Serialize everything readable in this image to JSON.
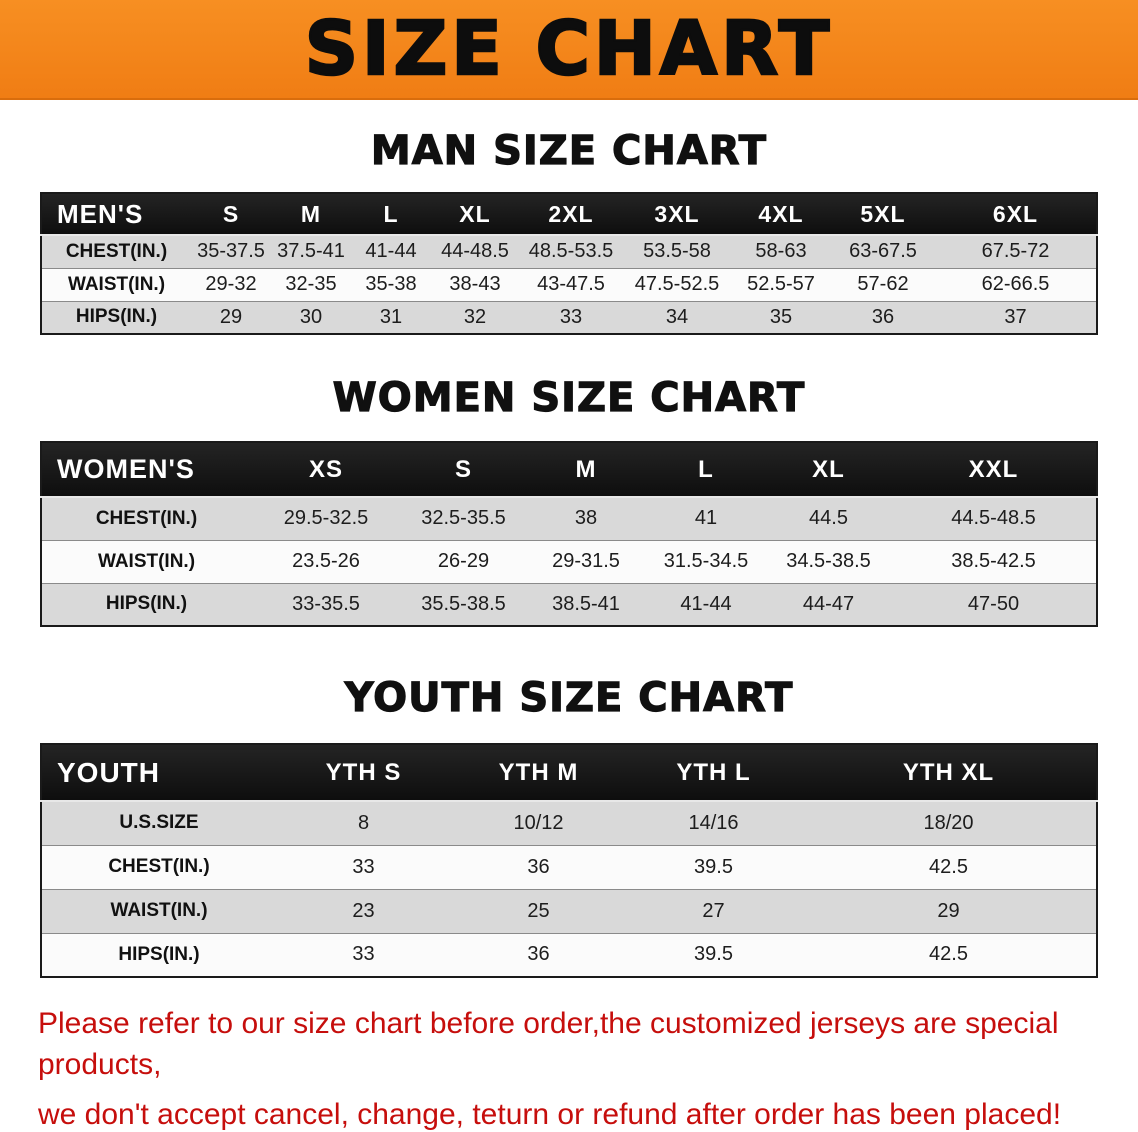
{
  "banner": {
    "title": "SIZE CHART",
    "bg_color": "#f5831e",
    "text_color": "#0d0d0d"
  },
  "sections": [
    {
      "heading": "MAN SIZE CHART",
      "table": {
        "header": [
          "MEN'S",
          "S",
          "M",
          "L",
          "XL",
          "2XL",
          "3XL",
          "4XL",
          "5XL",
          "6XL"
        ],
        "rows": [
          [
            "CHEST(IN.)",
            "35-37.5",
            "37.5-41",
            "41-44",
            "44-48.5",
            "48.5-53.5",
            "53.5-58",
            "58-63",
            "63-67.5",
            "67.5-72"
          ],
          [
            "WAIST(IN.)",
            "29-32",
            "32-35",
            "35-38",
            "38-43",
            "43-47.5",
            "47.5-52.5",
            "52.5-57",
            "57-62",
            "62-66.5"
          ],
          [
            "HIPS(IN.)",
            "29",
            "30",
            "31",
            "32",
            "33",
            "34",
            "35",
            "36",
            "37"
          ]
        ]
      }
    },
    {
      "heading": "WOMEN SIZE CHART",
      "table": {
        "header": [
          "WOMEN'S",
          "XS",
          "S",
          "M",
          "L",
          "XL",
          "XXL"
        ],
        "rows": [
          [
            "CHEST(IN.)",
            "29.5-32.5",
            "32.5-35.5",
            "38",
            "41",
            "44.5",
            "44.5-48.5"
          ],
          [
            "WAIST(IN.)",
            "23.5-26",
            "26-29",
            "29-31.5",
            "31.5-34.5",
            "34.5-38.5",
            "38.5-42.5"
          ],
          [
            "HIPS(IN.)",
            "33-35.5",
            "35.5-38.5",
            "38.5-41",
            "41-44",
            "44-47",
            "47-50"
          ]
        ]
      }
    },
    {
      "heading": "YOUTH SIZE CHART",
      "table": {
        "header": [
          "YOUTH",
          "YTH S",
          "YTH M",
          "YTH L",
          "YTH XL"
        ],
        "rows": [
          [
            "U.S.SIZE",
            "8",
            "10/12",
            "14/16",
            "18/20"
          ],
          [
            "CHEST(IN.)",
            "33",
            "36",
            "39.5",
            "42.5"
          ],
          [
            "WAIST(IN.)",
            "23",
            "25",
            "27",
            "29"
          ],
          [
            "HIPS(IN.)",
            "33",
            "36",
            "39.5",
            "42.5"
          ]
        ]
      }
    }
  ],
  "disclaimer": {
    "line1": "Please refer to our size chart before order,the customized jerseys are special products,",
    "line2": "we don't accept cancel, change, teturn or refund after order has been placed!",
    "color": "#c60e0c"
  }
}
